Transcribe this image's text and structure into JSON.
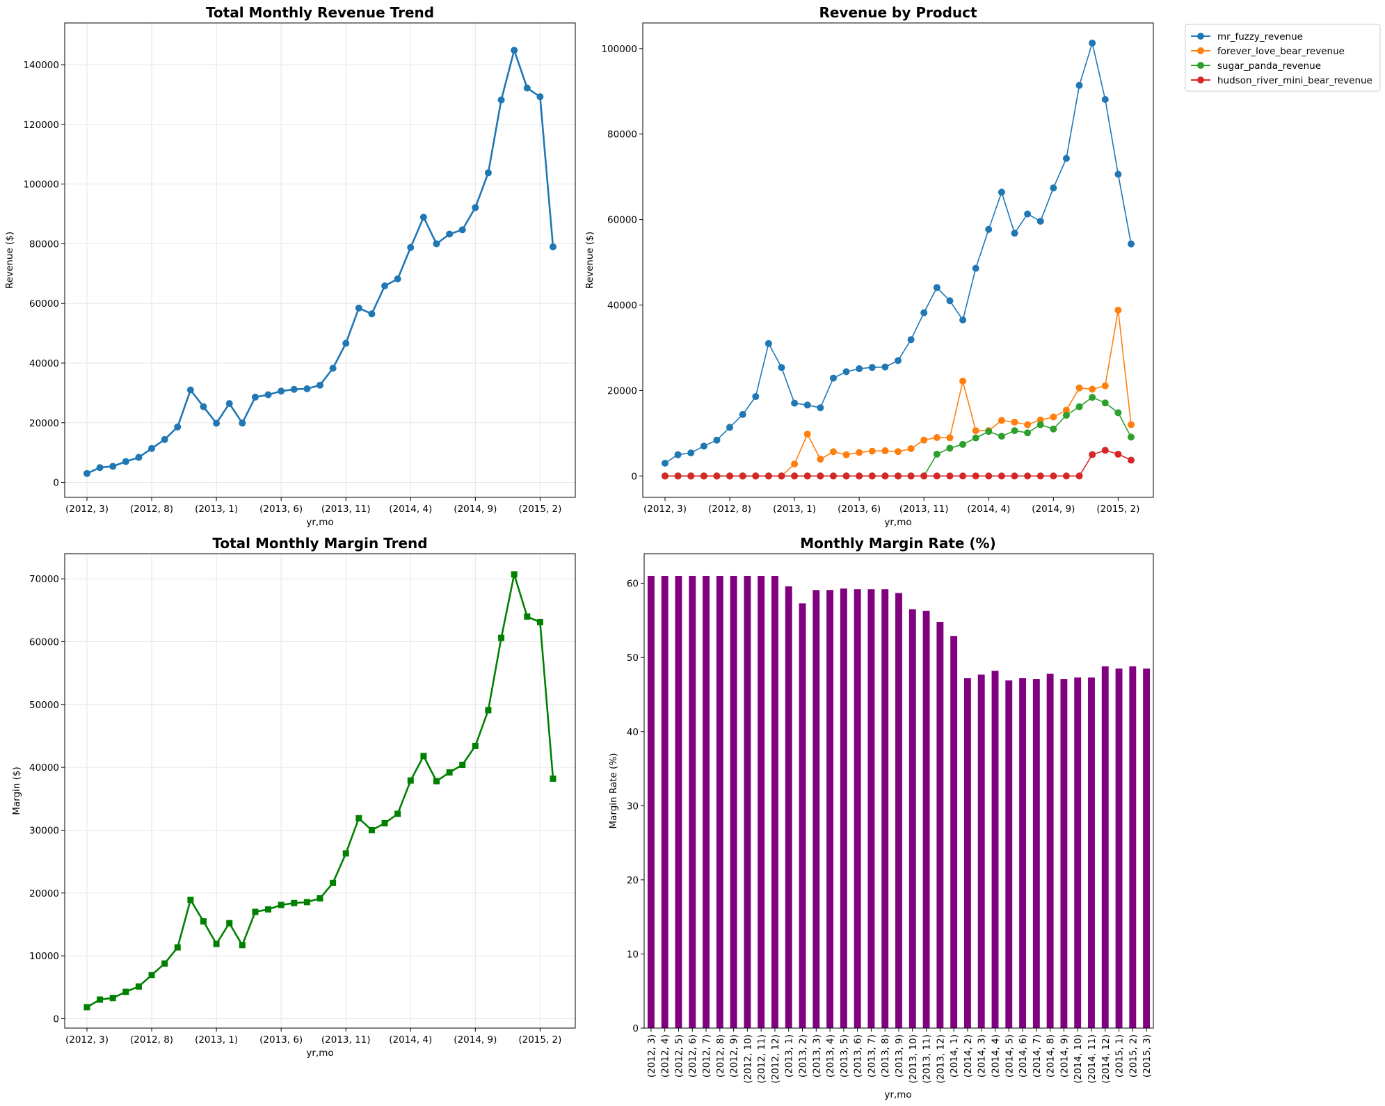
{
  "chart_data": [
    {
      "id": "revenue_trend",
      "type": "line",
      "title": "Total Monthly Revenue Trend",
      "xlabel": "yr,mo",
      "ylabel": "Revenue ($)",
      "ylim": [
        -5000,
        154000
      ],
      "yticks": [
        0,
        20000,
        40000,
        60000,
        80000,
        100000,
        120000,
        140000
      ],
      "xtick_indices": [
        0,
        5,
        10,
        15,
        20,
        25,
        30,
        35
      ],
      "grid": true,
      "series": [
        {
          "color": "#1f77b4",
          "marker": "circle",
          "values": [
            2999,
            4979,
            5394,
            6993,
            8392,
            11391,
            14390,
            18587,
            30994,
            25382,
            19832,
            26446,
            19899,
            28599,
            29396,
            30600,
            31198,
            31395,
            32597,
            38250,
            46632,
            58444,
            56499,
            65868,
            68203,
            78745,
            88898,
            79988,
            83247,
            84665,
            92118,
            103776,
            128217,
            144852,
            132189,
            129257,
            78962
          ]
        }
      ]
    },
    {
      "id": "revenue_by_product",
      "type": "line",
      "title": "Revenue by Product",
      "xlabel": "yr,mo",
      "ylabel": "Revenue ($)",
      "ylim": [
        -5000,
        106000
      ],
      "yticks": [
        0,
        20000,
        40000,
        60000,
        80000,
        100000
      ],
      "xtick_indices": [
        0,
        5,
        10,
        15,
        20,
        25,
        30,
        35
      ],
      "grid": false,
      "legend_position": "outside-top-right",
      "series": [
        {
          "name": "mr_fuzzy_revenue",
          "color": "#1f77b4",
          "marker": "circle",
          "values": [
            2999,
            4979,
            5394,
            6993,
            8392,
            11391,
            14390,
            18587,
            30994,
            25382,
            17040,
            16600,
            15960,
            22900,
            24400,
            25100,
            25400,
            25500,
            27000,
            31900,
            38200,
            44100,
            41000,
            36500,
            48600,
            57700,
            66400,
            56800,
            61300,
            59600,
            67400,
            74300,
            91400,
            101300,
            88100,
            70600,
            54300
          ]
        },
        {
          "name": "forever_love_bear_revenue",
          "color": "#ff7f0e",
          "marker": "circle",
          "values": [
            0,
            0,
            0,
            0,
            0,
            0,
            0,
            0,
            0,
            0,
            2800,
            9800,
            3940,
            5680,
            4960,
            5500,
            5800,
            5900,
            5700,
            6400,
            8400,
            9000,
            8950,
            22200,
            10600,
            10600,
            13000,
            12600,
            12000,
            13100,
            13800,
            15400,
            20600,
            20300,
            21100,
            38800,
            12000
          ]
        },
        {
          "name": "sugar_panda_revenue",
          "color": "#2ca02c",
          "marker": "circle",
          "values": [
            0,
            0,
            0,
            0,
            0,
            0,
            0,
            0,
            0,
            0,
            0,
            0,
            0,
            0,
            0,
            0,
            0,
            0,
            0,
            0,
            0,
            5100,
            6500,
            7400,
            8900,
            10400,
            9300,
            10600,
            10100,
            12000,
            11000,
            14200,
            16200,
            18400,
            17100,
            14800,
            9100
          ]
        },
        {
          "name": "hudson_river_mini_bear_revenue",
          "color": "#d62728",
          "marker": "circle",
          "values": [
            0,
            0,
            0,
            0,
            0,
            0,
            0,
            0,
            0,
            0,
            0,
            0,
            0,
            0,
            0,
            0,
            0,
            0,
            0,
            0,
            0,
            0,
            0,
            0,
            0,
            0,
            0,
            0,
            0,
            0,
            0,
            0,
            0,
            5000,
            6000,
            5100,
            3700
          ]
        }
      ]
    },
    {
      "id": "margin_trend",
      "type": "line",
      "title": "Total Monthly Margin Trend",
      "xlabel": "yr,mo",
      "ylabel": "Margin ($)",
      "ylim": [
        -1500,
        74000
      ],
      "yticks": [
        0,
        10000,
        20000,
        30000,
        40000,
        50000,
        60000,
        70000
      ],
      "xtick_indices": [
        0,
        5,
        10,
        15,
        20,
        25,
        30,
        35
      ],
      "grid": true,
      "series": [
        {
          "color": "#008000",
          "marker": "square",
          "values": [
            1830,
            3037,
            3290,
            4266,
            5119,
            6948,
            8778,
            11338,
            18906,
            15483,
            11900,
            15200,
            11700,
            17000,
            17400,
            18100,
            18400,
            18550,
            19150,
            21600,
            26300,
            31900,
            30000,
            31100,
            32600,
            37900,
            41800,
            37800,
            39200,
            40400,
            43400,
            49100,
            60600,
            70700,
            64000,
            63100,
            38200
          ]
        }
      ]
    },
    {
      "id": "margin_rate",
      "type": "bar",
      "title": "Monthly Margin Rate (%)",
      "xlabel": "yr,mo",
      "ylabel": "Margin Rate (%)",
      "ylim": [
        0,
        64
      ],
      "yticks": [
        0,
        10,
        20,
        30,
        40,
        50,
        60
      ],
      "grid": false,
      "series": [
        {
          "color": "#800080",
          "values": [
            61,
            61,
            61,
            61,
            61,
            61,
            61,
            61,
            61,
            61,
            59.6,
            57.3,
            59.1,
            59.1,
            59.3,
            59.2,
            59.2,
            59.2,
            58.7,
            56.5,
            56.3,
            54.8,
            52.9,
            47.2,
            47.7,
            48.2,
            46.9,
            47.2,
            47.1,
            47.8,
            47.1,
            47.3,
            47.3,
            48.8,
            48.5,
            48.8,
            48.5
          ]
        }
      ]
    }
  ],
  "x_categories": [
    "(2012, 3)",
    "(2012, 4)",
    "(2012, 5)",
    "(2012, 6)",
    "(2012, 7)",
    "(2012, 8)",
    "(2012, 9)",
    "(2012, 10)",
    "(2012, 11)",
    "(2012, 12)",
    "(2013, 1)",
    "(2013, 2)",
    "(2013, 3)",
    "(2013, 4)",
    "(2013, 5)",
    "(2013, 6)",
    "(2013, 7)",
    "(2013, 8)",
    "(2013, 9)",
    "(2013, 10)",
    "(2013, 11)",
    "(2013, 12)",
    "(2014, 1)",
    "(2014, 2)",
    "(2014, 3)",
    "(2014, 4)",
    "(2014, 5)",
    "(2014, 6)",
    "(2014, 7)",
    "(2014, 8)",
    "(2014, 9)",
    "(2014, 10)",
    "(2014, 11)",
    "(2014, 12)",
    "(2015, 1)",
    "(2015, 2)",
    "(2015, 3)"
  ]
}
